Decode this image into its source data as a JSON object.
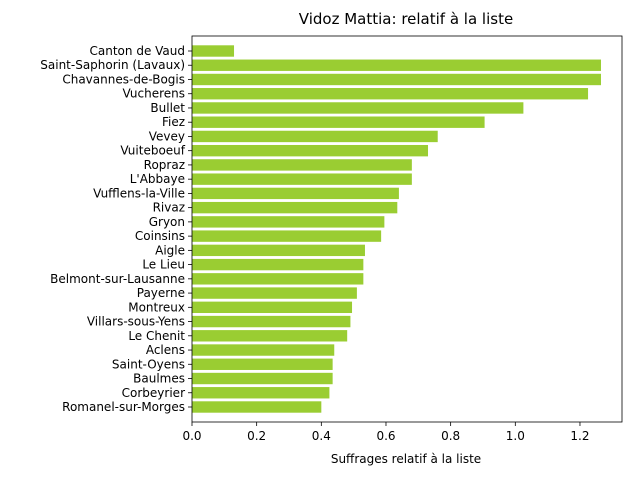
{
  "chart_data": {
    "type": "bar",
    "orientation": "horizontal",
    "title": "Vidoz Mattia: relatif à la liste",
    "xlabel": "Suffrages relatif à la liste",
    "ylabel": "",
    "xlim": [
      0,
      1.33
    ],
    "xticks": [
      "0.0",
      "0.2",
      "0.4",
      "0.6",
      "0.8",
      "1.0",
      "1.2"
    ],
    "grid": false,
    "bar_color": "#9acd32",
    "categories": [
      "Canton de Vaud",
      "Saint-Saphorin (Lavaux)",
      "Chavannes-de-Bogis",
      "Vucherens",
      "Bullet",
      "Fiez",
      "Vevey",
      "Vuiteboeuf",
      "Ropraz",
      "L'Abbaye",
      "Vufflens-la-Ville",
      "Rivaz",
      "Gryon",
      "Coinsins",
      "Aigle",
      "Le Lieu",
      "Belmont-sur-Lausanne",
      "Payerne",
      "Montreux",
      "Villars-sous-Yens",
      "Le Chenit",
      "Aclens",
      "Saint-Oyens",
      "Baulmes",
      "Corbeyrier",
      "Romanel-sur-Morges"
    ],
    "values": [
      0.13,
      1.265,
      1.265,
      1.225,
      1.025,
      0.905,
      0.76,
      0.73,
      0.68,
      0.68,
      0.64,
      0.635,
      0.595,
      0.585,
      0.535,
      0.53,
      0.53,
      0.51,
      0.495,
      0.49,
      0.48,
      0.44,
      0.435,
      0.435,
      0.425,
      0.4
    ]
  }
}
